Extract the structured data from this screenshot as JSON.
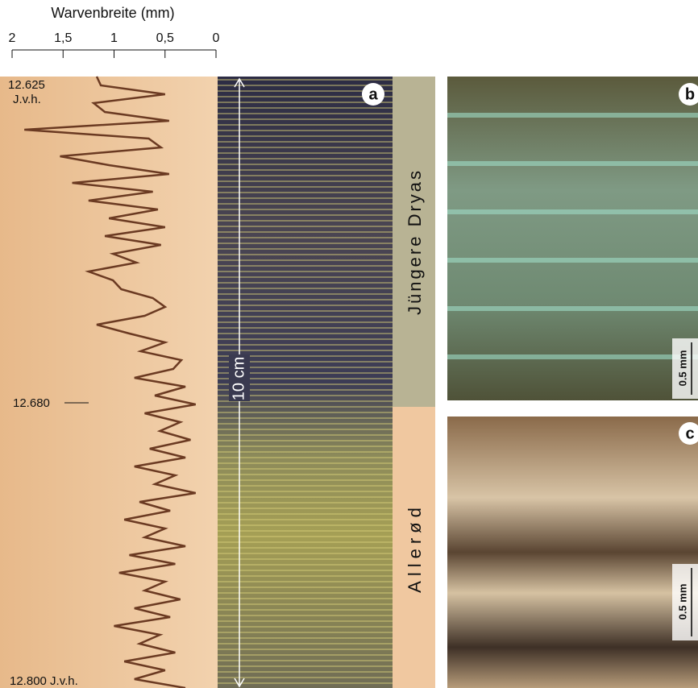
{
  "chart_data": {
    "type": "line",
    "xlabel": "Warvenbreite (mm)",
    "color": "#6b3a22",
    "xlim": [
      2,
      0
    ],
    "xticks": [
      2,
      {
        "value": 1.5,
        "label": "1,5"
      },
      1,
      {
        "value": 0.5,
        "label": "0,5"
      },
      0
    ],
    "values": [
      1.17,
      1.13,
      0.5,
      1.2,
      1.09,
      0.46,
      1.88,
      0.66,
      0.54,
      1.53,
      1.05,
      0.46,
      1.41,
      0.62,
      1.25,
      0.57,
      1.05,
      0.5,
      1.09,
      0.54,
      1.01,
      0.78,
      1.25,
      1.01,
      0.93,
      0.62,
      0.5,
      0.7,
      1.17,
      0.85,
      0.5,
      0.74,
      0.34,
      0.42,
      0.8,
      0.3,
      0.6,
      0.2,
      0.7,
      0.35,
      0.55,
      0.25,
      0.65,
      0.3,
      0.8,
      0.4,
      0.6,
      0.2,
      0.75,
      0.45,
      0.9,
      0.5,
      0.7,
      0.3,
      0.85,
      0.4,
      0.95,
      0.5,
      0.7,
      0.35,
      0.8,
      0.45,
      1.0,
      0.55,
      0.75,
      0.4,
      0.9,
      0.5,
      0.8,
      0.3
    ],
    "annotations": [
      "12.625",
      "J.v.h.",
      "12.680",
      "12.800 J.v.h."
    ]
  },
  "figure": {
    "panels": [
      "a",
      "b",
      "c"
    ],
    "zones": [
      "Jüngere Dryas",
      "Allerød"
    ],
    "scales": [
      "10 cm",
      "0.5 mm",
      "0.5 mm"
    ]
  }
}
